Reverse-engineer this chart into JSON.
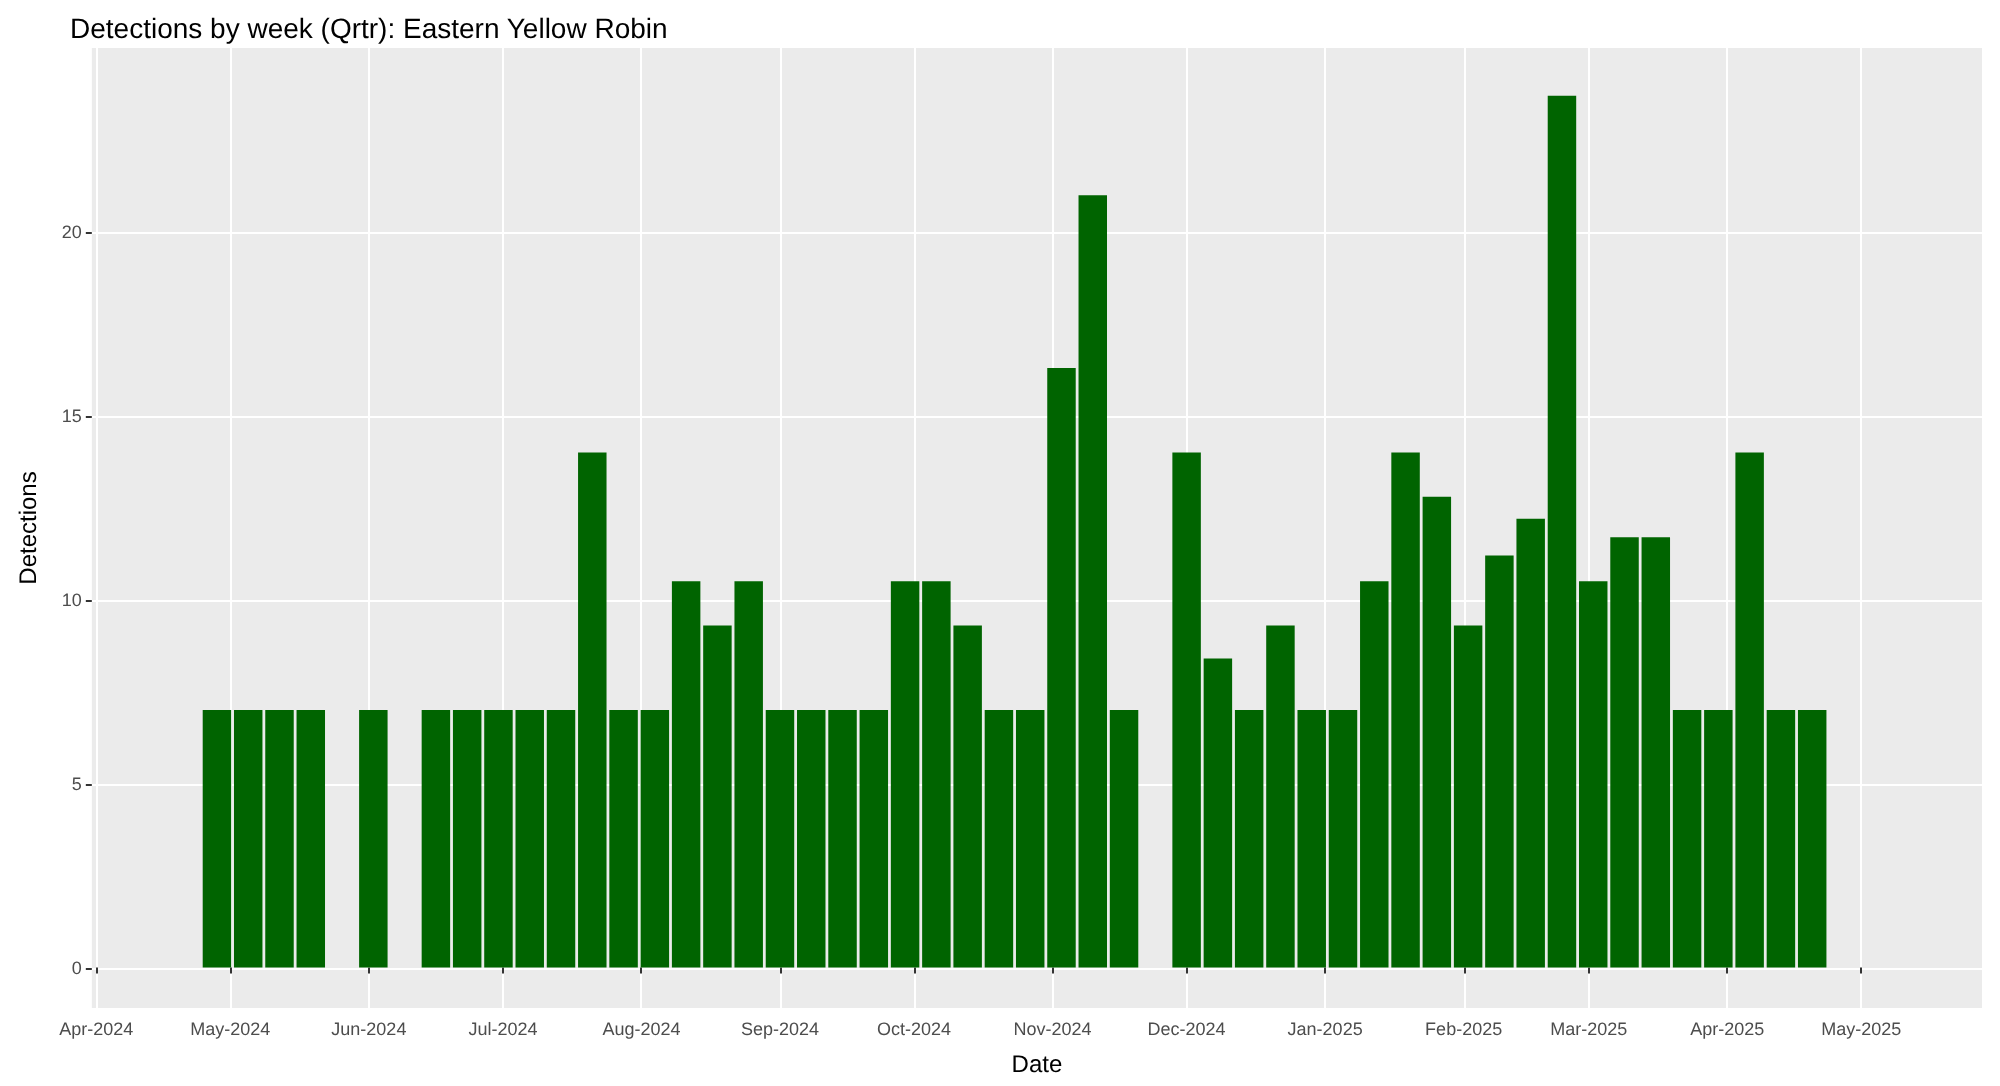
{
  "chart_data": {
    "type": "bar",
    "title": "Detections by week (Qrtr): Eastern Yellow Robin",
    "xlabel": "Date",
    "ylabel": "Detections",
    "x": [
      "2024-04-28",
      "2024-05-05",
      "2024-05-12",
      "2024-05-19",
      "2024-05-26",
      "2024-06-02",
      "2024-06-09",
      "2024-06-16",
      "2024-06-23",
      "2024-06-30",
      "2024-07-07",
      "2024-07-14",
      "2024-07-21",
      "2024-07-28",
      "2024-08-04",
      "2024-08-11",
      "2024-08-18",
      "2024-08-25",
      "2024-09-01",
      "2024-09-08",
      "2024-09-15",
      "2024-09-22",
      "2024-09-29",
      "2024-10-06",
      "2024-10-13",
      "2024-10-20",
      "2024-10-27",
      "2024-11-03",
      "2024-11-10",
      "2024-11-17",
      "2024-11-24",
      "2024-12-01",
      "2024-12-08",
      "2024-12-15",
      "2024-12-22",
      "2024-12-29",
      "2025-01-05",
      "2025-01-12",
      "2025-01-19",
      "2025-01-26",
      "2025-02-02",
      "2025-02-09",
      "2025-02-16",
      "2025-02-23",
      "2025-03-02",
      "2025-03-09",
      "2025-03-16",
      "2025-03-23",
      "2025-03-30",
      "2025-04-06",
      "2025-04-13",
      "2025-04-20"
    ],
    "values": [
      7,
      7,
      7,
      7,
      null,
      7,
      null,
      7,
      7,
      7,
      7,
      7,
      14,
      7,
      7,
      10.5,
      9.3,
      10.5,
      7,
      7,
      7,
      7,
      10.5,
      10.5,
      9.3,
      7,
      7,
      16.3,
      21,
      7,
      null,
      14,
      8.4,
      7,
      9.3,
      7,
      7,
      10.5,
      14,
      12.8,
      9.3,
      11.2,
      12.2,
      23.7,
      10.5,
      11.7,
      11.7,
      7,
      7,
      14,
      7,
      7
    ],
    "color": "#006400",
    "xlim": [
      "2024-03-31",
      "2025-05-28"
    ],
    "xticks": [
      {
        "value": "2024-04-01",
        "label": "Apr-2024"
      },
      {
        "value": "2024-05-01",
        "label": "May-2024"
      },
      {
        "value": "2024-06-01",
        "label": "Jun-2024"
      },
      {
        "value": "2024-07-01",
        "label": "Jul-2024"
      },
      {
        "value": "2024-08-01",
        "label": "Aug-2024"
      },
      {
        "value": "2024-09-01",
        "label": "Sep-2024"
      },
      {
        "value": "2024-10-01",
        "label": "Oct-2024"
      },
      {
        "value": "2024-11-01",
        "label": "Nov-2024"
      },
      {
        "value": "2024-12-01",
        "label": "Dec-2024"
      },
      {
        "value": "2025-01-01",
        "label": "Jan-2025"
      },
      {
        "value": "2025-02-01",
        "label": "Feb-2025"
      },
      {
        "value": "2025-03-01",
        "label": "Mar-2025"
      },
      {
        "value": "2025-04-01",
        "label": "Apr-2025"
      },
      {
        "value": "2025-05-01",
        "label": "May-2025"
      }
    ],
    "ylim": [
      -1.1,
      25
    ],
    "yticks": [
      0,
      5,
      10,
      15,
      20
    ],
    "grid": true
  }
}
